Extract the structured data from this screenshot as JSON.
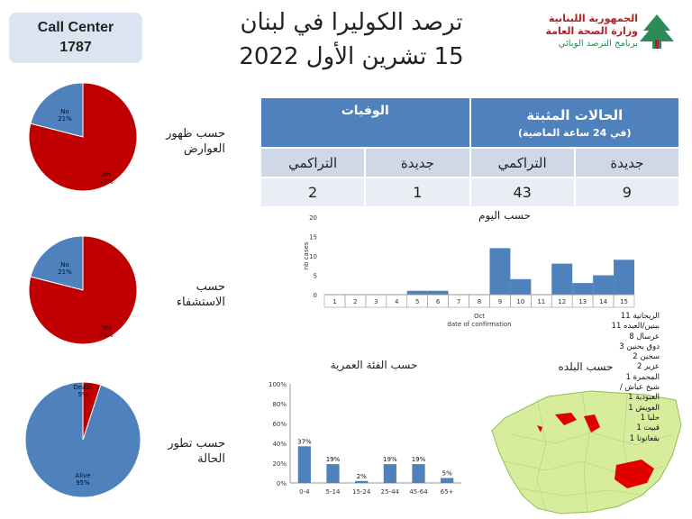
{
  "call_center": {
    "line1": "Call Center",
    "line2": "1787"
  },
  "title": {
    "line1": "ترصد الكوليرا في لبنان",
    "line2": "15 تشرين الأول 2022"
  },
  "logo": {
    "line1": "الجمهورية اللبنانية",
    "line2": "وزارة الصحة العامة",
    "line3": "برنامج الترصد الوبائي"
  },
  "side_labels": {
    "symptoms": "حسب ظهور العوارض",
    "hospital": "حسب الاستشفاء",
    "outcome": "حسب تطور الحالة"
  },
  "stats_table": {
    "confirmed_header": "الحالات المثبتة",
    "confirmed_subheader": "(في 24 ساعة الماضية)",
    "deaths_header": "الوفيات",
    "new_label": "جديدة",
    "cumulative_label": "التراكمي",
    "confirmed_new": "9",
    "confirmed_cumulative": "43",
    "deaths_new": "1",
    "deaths_cumulative": "2"
  },
  "daily_title": "حسب اليوم",
  "age_title": "حسب الفئة العمرية",
  "town_title": "حسب البلده",
  "towns": [
    "الريحانية 11",
    "ببنين/العبده 11",
    "عرسال 8",
    "دوق بحنين 3",
    "سجين 2",
    "عزير 2",
    "المحمرة 1",
    "شيخ عياش / العبودية 1",
    "العويش 1",
    "حلبا 1",
    "قبيت 1",
    "بقعاتوتا 1"
  ],
  "colors": {
    "red": "#c00000",
    "blue": "#4f81bd",
    "table_header": "#4f81bd",
    "map_green": "#d7ed9d"
  },
  "chart_data": [
    {
      "type": "pie",
      "labels": [
        "No",
        "Yes"
      ],
      "values": [
        21,
        79
      ],
      "colors": [
        "#4f81bd",
        "#c00000"
      ]
    },
    {
      "type": "pie",
      "labels": [
        "No",
        "Yes"
      ],
      "values": [
        21,
        79
      ],
      "colors": [
        "#4f81bd",
        "#c00000"
      ]
    },
    {
      "type": "pie",
      "labels": [
        "Alive",
        "Death"
      ],
      "values": [
        95,
        5
      ],
      "colors": [
        "#4f81bd",
        "#c00000"
      ]
    },
    {
      "type": "bar",
      "categories": [
        "1",
        "2",
        "3",
        "4",
        "5",
        "6",
        "7",
        "8",
        "9",
        "10",
        "11",
        "12",
        "13",
        "14",
        "15"
      ],
      "values": [
        0,
        0,
        0,
        0,
        1,
        1,
        0,
        0,
        12,
        4,
        0,
        8,
        3,
        5,
        9
      ],
      "xlabel": "date of confirmation",
      "xgroup_label": "Oct",
      "ylabel": "nb cases",
      "ylim": [
        0,
        20
      ],
      "yticks": [
        0,
        5,
        10,
        15,
        20
      ],
      "color": "#4f81bd"
    },
    {
      "type": "bar",
      "categories": [
        "0-4",
        "5-14",
        "15-24",
        "25-44",
        "45-64",
        "65+"
      ],
      "values": [
        37,
        19,
        2,
        19,
        19,
        5
      ],
      "ylim": [
        0,
        100
      ],
      "yticks": [
        "0%",
        "20%",
        "40%",
        "60%",
        "80%",
        "100%"
      ],
      "color": "#4f81bd"
    }
  ]
}
